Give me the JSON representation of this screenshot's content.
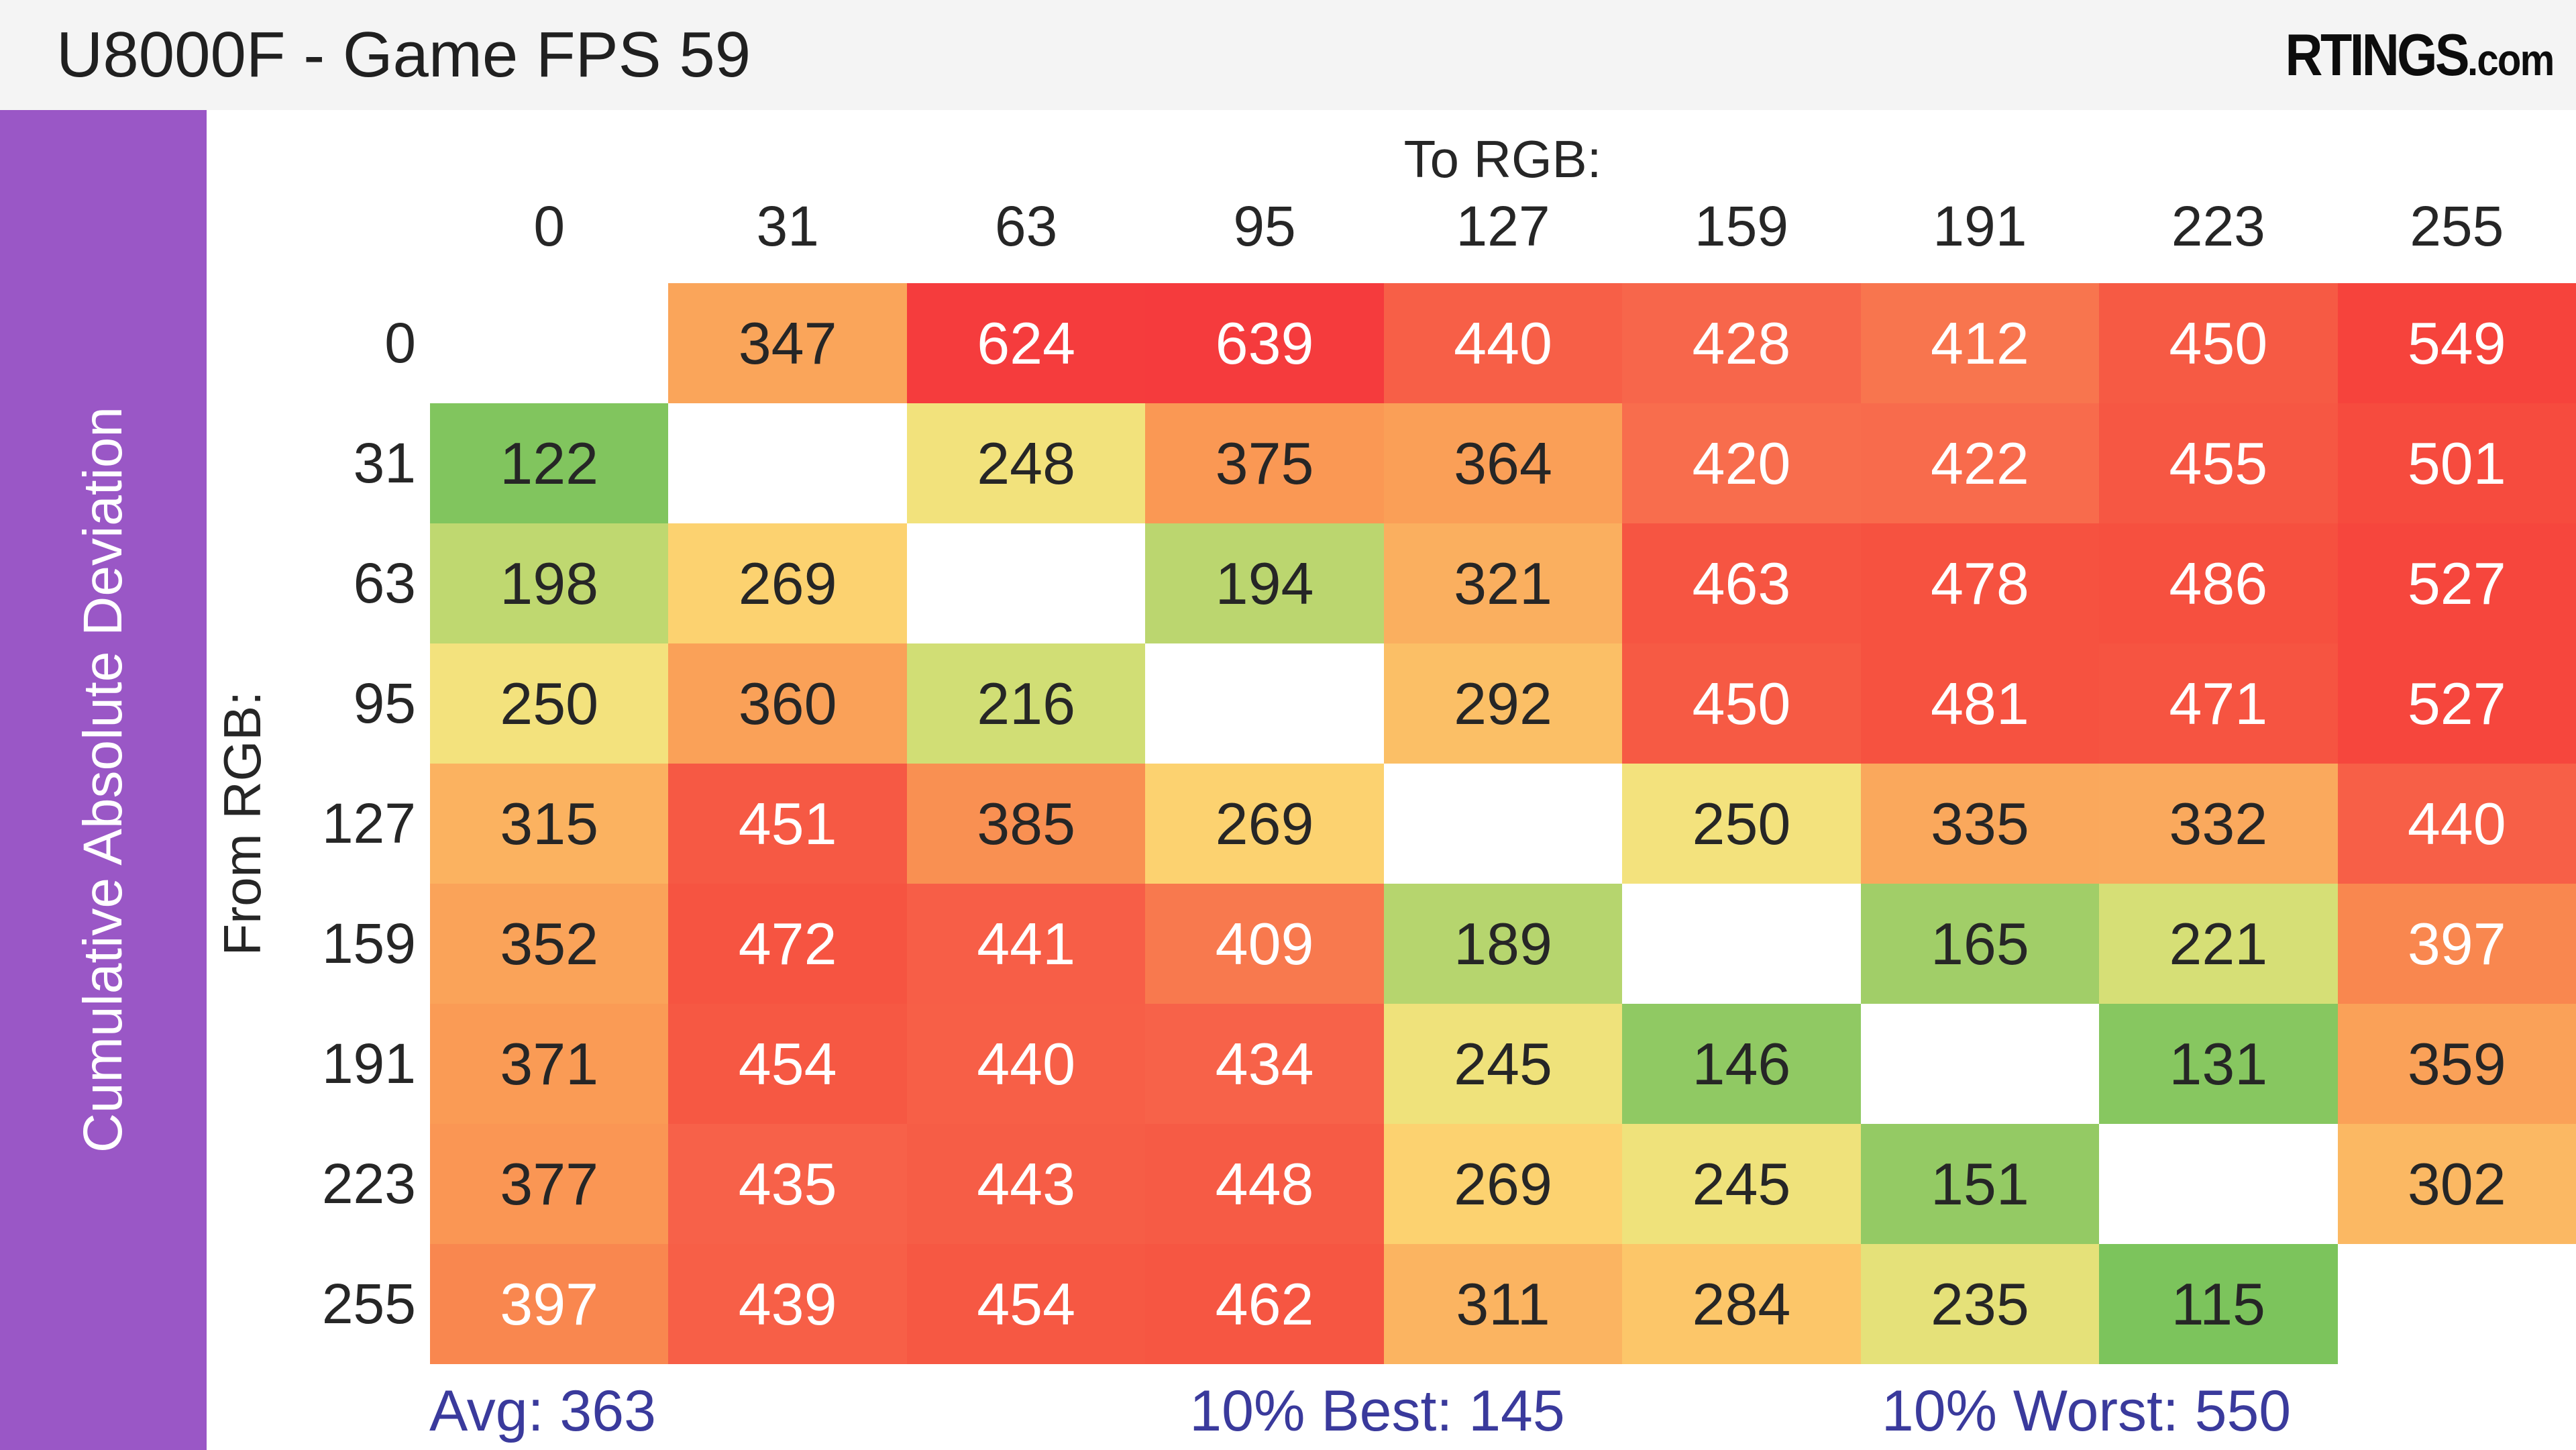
{
  "header": {
    "title": "U8000F - Game FPS 59",
    "logo_main": "RTINGS",
    "logo_suffix": ".com",
    "bg": "#f4f4f4"
  },
  "sidebar": {
    "label": "Cumulative Absolute Deviation",
    "color": "#9a57c6",
    "text_color": "#ffffff"
  },
  "axes": {
    "col_axis_title": "To RGB:",
    "row_axis_title": "From RGB:"
  },
  "stats": {
    "avg": "Avg: 363",
    "best": "10% Best: 145",
    "worst": "10% Worst: 550",
    "color": "#3a3a9c"
  },
  "chart_data": {
    "type": "heatmap",
    "title": "U8000F - Game FPS 59",
    "x_axis_label": "To RGB:",
    "y_axis_label": "From RGB:",
    "x_categories": [
      "0",
      "31",
      "63",
      "95",
      "127",
      "159",
      "191",
      "223",
      "255"
    ],
    "y_categories": [
      "0",
      "31",
      "63",
      "95",
      "127",
      "159",
      "191",
      "223",
      "255"
    ],
    "rows": [
      [
        null,
        347,
        624,
        639,
        440,
        428,
        412,
        450,
        549
      ],
      [
        122,
        null,
        248,
        375,
        364,
        420,
        422,
        455,
        501
      ],
      [
        198,
        269,
        null,
        194,
        321,
        463,
        478,
        486,
        527
      ],
      [
        250,
        360,
        216,
        null,
        292,
        450,
        481,
        471,
        527
      ],
      [
        315,
        451,
        385,
        269,
        null,
        250,
        335,
        332,
        440
      ],
      [
        352,
        472,
        441,
        409,
        189,
        null,
        165,
        221,
        397
      ],
      [
        371,
        454,
        440,
        434,
        245,
        146,
        null,
        131,
        359
      ],
      [
        377,
        435,
        443,
        448,
        269,
        245,
        151,
        null,
        302
      ],
      [
        397,
        439,
        454,
        462,
        311,
        284,
        235,
        115,
        null
      ]
    ],
    "summary": {
      "avg": 363,
      "best_10pct": 145,
      "worst_10pct": 550
    },
    "diagonal_note": "null cells (from == to) are blank white",
    "colormap_stops": [
      [
        115,
        "#7cc45c"
      ],
      [
        150,
        "#93ca64"
      ],
      [
        190,
        "#b7d56e"
      ],
      [
        220,
        "#d5df76"
      ],
      [
        245,
        "#efe27b"
      ],
      [
        258,
        "#fae181"
      ],
      [
        270,
        "#fcd16e"
      ],
      [
        300,
        "#fbb963"
      ],
      [
        330,
        "#faaa5d"
      ],
      [
        365,
        "#fa9f57"
      ],
      [
        395,
        "#f9894f"
      ],
      [
        415,
        "#f8724e"
      ],
      [
        430,
        "#f7644a"
      ],
      [
        455,
        "#f65743"
      ],
      [
        480,
        "#f65240"
      ],
      [
        510,
        "#f6483d"
      ],
      [
        560,
        "#f6413c"
      ],
      [
        640,
        "#f53b3d"
      ]
    ],
    "text_dark": "#262626",
    "text_light": "#ffffff",
    "light_text_threshold": 390
  }
}
